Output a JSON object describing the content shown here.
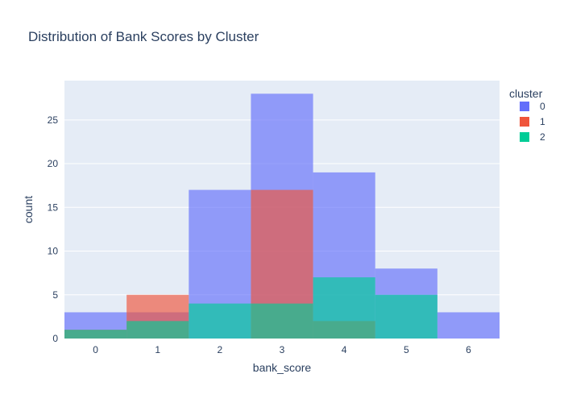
{
  "chart_data": {
    "type": "bar",
    "barmode": "overlay",
    "title": "Distribution of Bank Scores by Cluster",
    "xlabel": "bank_score",
    "ylabel": "count",
    "categories": [
      "0",
      "1",
      "2",
      "3",
      "4",
      "5",
      "6"
    ],
    "xlim": [
      -0.5,
      6.5
    ],
    "ylim": [
      0,
      29.5
    ],
    "yticks": [
      "0",
      "5",
      "10",
      "15",
      "20",
      "25"
    ],
    "grid": true,
    "legend": {
      "title": "cluster",
      "position": "top-right"
    },
    "series": [
      {
        "name": "0",
        "color": "#636efa",
        "values": [
          3,
          3,
          17,
          28,
          19,
          8,
          3
        ]
      },
      {
        "name": "1",
        "color": "#ef553b",
        "values": [
          1,
          5,
          0,
          17,
          2,
          0,
          0
        ]
      },
      {
        "name": "2",
        "color": "#00cc96",
        "values": [
          1,
          2,
          4,
          4,
          7,
          5,
          0
        ]
      }
    ],
    "bar_opacity": 0.65,
    "plot_background": "#e5ecf6"
  }
}
